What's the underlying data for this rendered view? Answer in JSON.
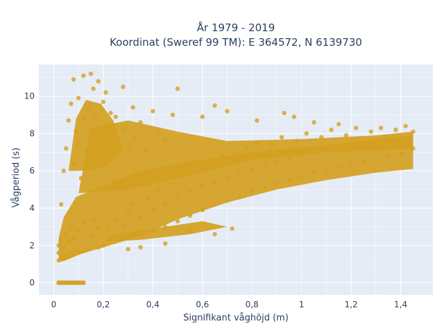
{
  "chart_data": {
    "type": "scatter",
    "title": "År 1979 - 2019",
    "subtitle": "Koordinat (Sweref 99 TM): E 364572, N 6139730",
    "xlabel": "Signifikant våghöjd (m)",
    "ylabel": "Vågperiod (s)",
    "xlim": [
      -0.06,
      1.53
    ],
    "ylim": [
      -0.65,
      11.7
    ],
    "x_ticks": [
      0,
      0.2,
      0.4,
      0.6,
      0.8,
      1,
      1.2,
      1.4
    ],
    "x_tick_labels": [
      "0",
      "0,2",
      "0,4",
      "0,6",
      "0,8",
      "1",
      "1,2",
      "1,4"
    ],
    "y_ticks": [
      0,
      2,
      4,
      6,
      8,
      10
    ],
    "y_tick_labels": [
      "0",
      "2",
      "4",
      "6",
      "8",
      "10"
    ],
    "grid": true,
    "marker_color": "#d4a020",
    "background_color": "#e5ecf6",
    "series": [
      {
        "values_note_zero_row": [
          [
            0.02,
            0
          ],
          [
            0.03,
            0
          ],
          [
            0.04,
            0
          ],
          [
            0.05,
            0
          ],
          [
            0.06,
            0
          ],
          [
            0.07,
            0
          ],
          [
            0.08,
            0
          ],
          [
            0.09,
            0
          ],
          [
            0.1,
            0
          ],
          [
            0.11,
            0
          ],
          [
            0.12,
            0
          ]
        ],
        "points": [
          [
            0.02,
            1.2
          ],
          [
            0.02,
            1.6
          ],
          [
            0.02,
            2.0
          ],
          [
            0.03,
            1.4
          ],
          [
            0.03,
            2.3
          ],
          [
            0.04,
            1.3
          ],
          [
            0.04,
            1.9
          ],
          [
            0.05,
            1.5
          ],
          [
            0.05,
            2.6
          ],
          [
            0.06,
            1.4
          ],
          [
            0.06,
            2.2
          ],
          [
            0.07,
            1.6
          ],
          [
            0.07,
            3.0
          ],
          [
            0.08,
            1.5
          ],
          [
            0.08,
            2.4
          ],
          [
            0.09,
            1.7
          ],
          [
            0.1,
            1.6
          ],
          [
            0.1,
            2.8
          ],
          [
            0.12,
            1.7
          ],
          [
            0.12,
            3.2
          ],
          [
            0.14,
            1.8
          ],
          [
            0.15,
            2.5
          ],
          [
            0.16,
            3.4
          ],
          [
            0.18,
            1.9
          ],
          [
            0.18,
            2.9
          ],
          [
            0.2,
            2.0
          ],
          [
            0.2,
            3.6
          ],
          [
            0.03,
            4.2
          ],
          [
            0.04,
            6.0
          ],
          [
            0.05,
            7.2
          ],
          [
            0.06,
            8.7
          ],
          [
            0.07,
            9.6
          ],
          [
            0.08,
            10.9
          ],
          [
            0.08,
            6.4
          ],
          [
            0.09,
            8.1
          ],
          [
            0.1,
            7.5
          ],
          [
            0.1,
            9.9
          ],
          [
            0.11,
            5.6
          ],
          [
            0.12,
            8.8
          ],
          [
            0.12,
            11.1
          ],
          [
            0.13,
            7.0
          ],
          [
            0.14,
            9.3
          ],
          [
            0.14,
            6.3
          ],
          [
            0.15,
            8.0
          ],
          [
            0.15,
            11.2
          ],
          [
            0.16,
            10.4
          ],
          [
            0.16,
            7.4
          ],
          [
            0.17,
            9.0
          ],
          [
            0.18,
            8.3
          ],
          [
            0.18,
            10.8
          ],
          [
            0.19,
            6.8
          ],
          [
            0.2,
            9.7
          ],
          [
            0.2,
            7.9
          ],
          [
            0.21,
            10.2
          ],
          [
            0.22,
            8.5
          ],
          [
            0.22,
            6.6
          ],
          [
            0.23,
            9.1
          ],
          [
            0.24,
            7.6
          ],
          [
            0.25,
            8.9
          ],
          [
            0.26,
            6.9
          ],
          [
            0.28,
            10.5
          ],
          [
            0.28,
            8.2
          ],
          [
            0.3,
            7.3
          ],
          [
            0.32,
            9.4
          ],
          [
            0.33,
            7.8
          ],
          [
            0.35,
            8.6
          ],
          [
            0.37,
            7.1
          ],
          [
            0.4,
            9.2
          ],
          [
            0.42,
            8.0
          ],
          [
            0.45,
            7.7
          ],
          [
            0.48,
            9.0
          ],
          [
            0.5,
            10.4
          ],
          [
            0.22,
            3.0
          ],
          [
            0.25,
            3.4
          ],
          [
            0.28,
            3.1
          ],
          [
            0.3,
            3.8
          ],
          [
            0.3,
            2.4
          ],
          [
            0.32,
            4.2
          ],
          [
            0.35,
            3.5
          ],
          [
            0.35,
            2.6
          ],
          [
            0.38,
            4.5
          ],
          [
            0.4,
            3.9
          ],
          [
            0.4,
            2.8
          ],
          [
            0.42,
            5.0
          ],
          [
            0.45,
            4.2
          ],
          [
            0.45,
            3.0
          ],
          [
            0.48,
            5.3
          ],
          [
            0.5,
            4.6
          ],
          [
            0.5,
            3.3
          ],
          [
            0.52,
            5.8
          ],
          [
            0.55,
            4.9
          ],
          [
            0.55,
            3.6
          ],
          [
            0.58,
            6.2
          ],
          [
            0.6,
            5.2
          ],
          [
            0.6,
            3.9
          ],
          [
            0.62,
            6.5
          ],
          [
            0.65,
            5.4
          ],
          [
            0.65,
            4.2
          ],
          [
            0.68,
            6.8
          ],
          [
            0.7,
            5.6
          ],
          [
            0.7,
            4.4
          ],
          [
            0.72,
            7.0
          ],
          [
            0.75,
            5.9
          ],
          [
            0.75,
            4.6
          ],
          [
            0.78,
            7.2
          ],
          [
            0.8,
            6.1
          ],
          [
            0.8,
            4.9
          ],
          [
            0.82,
            7.5
          ],
          [
            0.85,
            6.3
          ],
          [
            0.85,
            5.1
          ],
          [
            0.88,
            7.4
          ],
          [
            0.9,
            6.5
          ],
          [
            0.9,
            5.3
          ],
          [
            0.92,
            7.8
          ],
          [
            0.95,
            6.7
          ],
          [
            0.95,
            5.5
          ],
          [
            0.98,
            7.6
          ],
          [
            1.0,
            6.8
          ],
          [
            1.0,
            5.7
          ],
          [
            1.02,
            8.0
          ],
          [
            1.05,
            7.0
          ],
          [
            1.05,
            5.9
          ],
          [
            1.08,
            7.8
          ],
          [
            1.1,
            7.1
          ],
          [
            1.1,
            6.0
          ],
          [
            1.12,
            8.2
          ],
          [
            1.15,
            7.2
          ],
          [
            1.15,
            6.2
          ],
          [
            1.18,
            7.9
          ],
          [
            1.2,
            7.3
          ],
          [
            1.2,
            6.3
          ],
          [
            1.22,
            8.3
          ],
          [
            1.25,
            7.4
          ],
          [
            1.25,
            6.5
          ],
          [
            1.28,
            8.1
          ],
          [
            1.3,
            7.6
          ],
          [
            1.3,
            6.6
          ],
          [
            1.32,
            8.3
          ],
          [
            1.35,
            7.7
          ],
          [
            1.35,
            6.8
          ],
          [
            1.38,
            8.2
          ],
          [
            1.4,
            7.8
          ],
          [
            1.4,
            6.9
          ],
          [
            1.42,
            8.4
          ],
          [
            1.44,
            7.5
          ],
          [
            1.45,
            7.2
          ],
          [
            1.45,
            8.1
          ],
          [
            0.6,
            8.9
          ],
          [
            0.65,
            9.5
          ],
          [
            0.7,
            9.2
          ],
          [
            0.82,
            8.7
          ],
          [
            0.93,
            9.1
          ],
          [
            0.97,
            8.9
          ],
          [
            1.05,
            8.6
          ],
          [
            1.15,
            8.5
          ],
          [
            0.55,
            2.8
          ],
          [
            0.65,
            2.6
          ],
          [
            0.72,
            2.9
          ],
          [
            0.35,
            1.9
          ],
          [
            0.45,
            2.1
          ],
          [
            0.3,
            1.8
          ]
        ]
      }
    ]
  }
}
